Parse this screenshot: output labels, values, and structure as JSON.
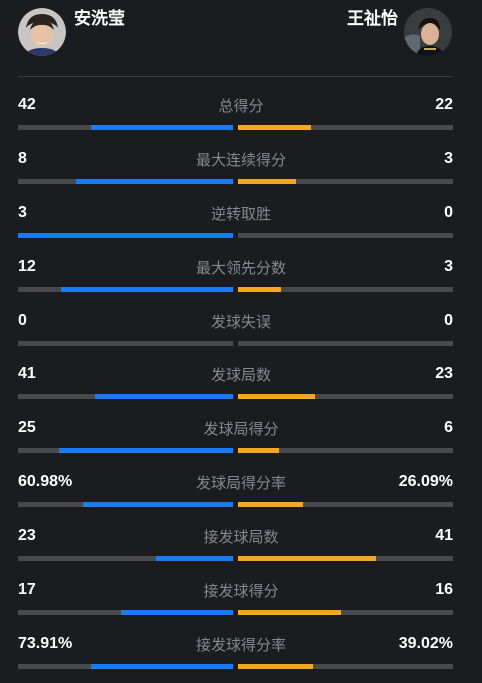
{
  "players": {
    "left": {
      "name": "安洗莹",
      "color": "#1a7cf5"
    },
    "right": {
      "name": "王祉怡",
      "color": "#f5a623"
    }
  },
  "stats": [
    {
      "label": "总得分",
      "left": "42",
      "right": "22",
      "left_share": 0.66,
      "right_share": 0.34
    },
    {
      "label": "最大连续得分",
      "left": "8",
      "right": "3",
      "left_share": 0.73,
      "right_share": 0.27
    },
    {
      "label": "逆转取胜",
      "left": "3",
      "right": "0",
      "left_share": 1.0,
      "right_share": 0.0
    },
    {
      "label": "最大领先分数",
      "left": "12",
      "right": "3",
      "left_share": 0.8,
      "right_share": 0.2
    },
    {
      "label": "发球失误",
      "left": "0",
      "right": "0",
      "left_share": 0.0,
      "right_share": 0.0
    },
    {
      "label": "发球局数",
      "left": "41",
      "right": "23",
      "left_share": 0.64,
      "right_share": 0.36
    },
    {
      "label": "发球局得分",
      "left": "25",
      "right": "6",
      "left_share": 0.81,
      "right_share": 0.19
    },
    {
      "label": "发球局得分率",
      "left": "60.98%",
      "right": "26.09%",
      "left_share": 0.7,
      "right_share": 0.3
    },
    {
      "label": "接发球局数",
      "left": "23",
      "right": "41",
      "left_share": 0.36,
      "right_share": 0.64
    },
    {
      "label": "接发球得分",
      "left": "17",
      "right": "16",
      "left_share": 0.52,
      "right_share": 0.48
    },
    {
      "label": "接发球得分率",
      "left": "73.91%",
      "right": "39.02%",
      "left_share": 0.66,
      "right_share": 0.35
    }
  ]
}
